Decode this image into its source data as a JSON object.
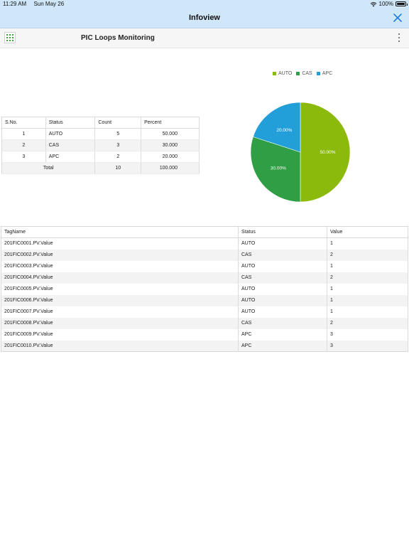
{
  "status_bar": {
    "time": "11:29 AM",
    "date": "Sun May 26",
    "battery": "100%"
  },
  "nav": {
    "title": "Infoview"
  },
  "header": {
    "title": "PIC Loops Monitoring"
  },
  "summary_table": {
    "columns": [
      "S.No.",
      "Status",
      "Count",
      "Percent"
    ],
    "rows": [
      {
        "sno": "1",
        "status": "AUTO",
        "count": "5",
        "percent": "50.000"
      },
      {
        "sno": "2",
        "status": "CAS",
        "count": "3",
        "percent": "30.000"
      },
      {
        "sno": "3",
        "status": "APC",
        "count": "2",
        "percent": "20.000"
      }
    ],
    "total": {
      "label": "Total",
      "count": "10",
      "percent": "100.000"
    }
  },
  "chart_data": {
    "type": "pie",
    "categories": [
      "AUTO",
      "CAS",
      "APC"
    ],
    "values": [
      50,
      30,
      20
    ],
    "labels": [
      "50.00%",
      "30.00%",
      "20.00%"
    ],
    "colors": [
      "#8cba0c",
      "#2f9e44",
      "#229fd8"
    ],
    "legend_position": "top-right"
  },
  "tag_table": {
    "columns": [
      "TagName",
      "Status",
      "Value"
    ],
    "rows": [
      {
        "tag": "201FIC0001.PV.Value",
        "status": "AUTO",
        "value": "1"
      },
      {
        "tag": "201FIC0002.PV.Value",
        "status": "CAS",
        "value": "2"
      },
      {
        "tag": "201FIC0003.PV.Value",
        "status": "AUTO",
        "value": "1"
      },
      {
        "tag": "201FIC0004.PV.Value",
        "status": "CAS",
        "value": "2"
      },
      {
        "tag": "201FIC0005.PV.Value",
        "status": "AUTO",
        "value": "1"
      },
      {
        "tag": "201FIC0006.PV.Value",
        "status": "AUTO",
        "value": "1"
      },
      {
        "tag": "201FIC0007.PV.Value",
        "status": "AUTO",
        "value": "1"
      },
      {
        "tag": "201FIC0008.PV.Value",
        "status": "CAS",
        "value": "2"
      },
      {
        "tag": "201FIC0009.PV.Value",
        "status": "APC",
        "value": "3"
      },
      {
        "tag": "201FIC0010.PV.Value",
        "status": "APC",
        "value": "3"
      }
    ]
  }
}
